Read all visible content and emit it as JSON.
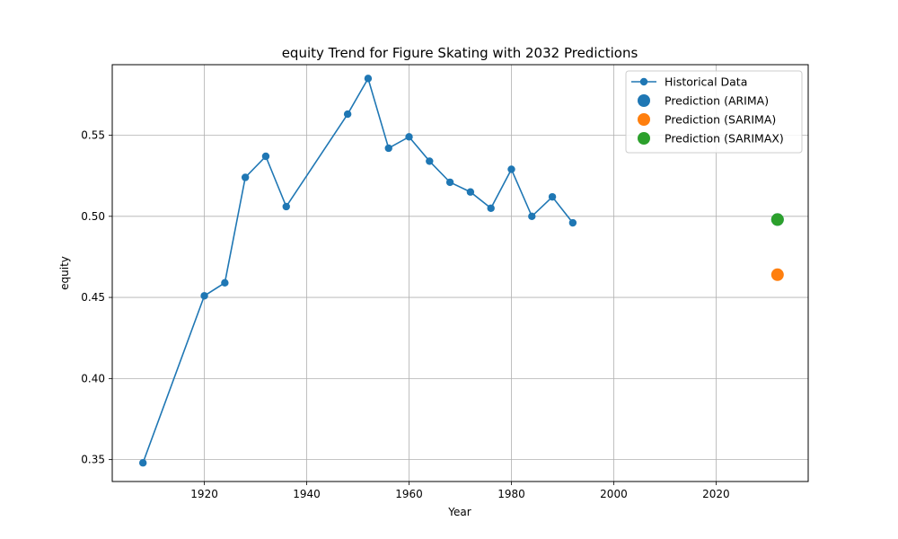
{
  "chart_data": {
    "type": "line",
    "title": "equity Trend for Figure Skating with 2032 Predictions",
    "xlabel": "Year",
    "ylabel": "equity",
    "xlim": [
      1902,
      2038
    ],
    "ylim": [
      0.3365,
      0.5935
    ],
    "xticks": [
      1920,
      1940,
      1960,
      1980,
      2000,
      2020
    ],
    "yticks": [
      0.35,
      0.4,
      0.45,
      0.5,
      0.55
    ],
    "ytick_labels": [
      "0.35",
      "0.40",
      "0.45",
      "0.50",
      "0.55"
    ],
    "grid": true,
    "legend_position": "top-right",
    "series": [
      {
        "name": "Historical Data",
        "kind": "line-marker",
        "color": "#1f77b4",
        "x": [
          1908,
          1920,
          1924,
          1928,
          1932,
          1936,
          1948,
          1952,
          1956,
          1960,
          1964,
          1968,
          1972,
          1976,
          1980,
          1984,
          1988,
          1992
        ],
        "y": [
          0.348,
          0.451,
          0.459,
          0.524,
          0.537,
          0.506,
          0.563,
          0.585,
          0.542,
          0.549,
          0.534,
          0.521,
          0.515,
          0.505,
          0.529,
          0.5,
          0.512,
          0.496
        ]
      },
      {
        "name": "Prediction (ARIMA)",
        "kind": "scatter",
        "color": "#1f77b4",
        "x": [
          2032
        ],
        "y": [
          0.498
        ]
      },
      {
        "name": "Prediction (SARIMA)",
        "kind": "scatter",
        "color": "#ff7f0e",
        "x": [
          2032
        ],
        "y": [
          0.464
        ]
      },
      {
        "name": "Prediction (SARIMAX)",
        "kind": "scatter",
        "color": "#2ca02c",
        "x": [
          2032
        ],
        "y": [
          0.498
        ]
      }
    ]
  }
}
